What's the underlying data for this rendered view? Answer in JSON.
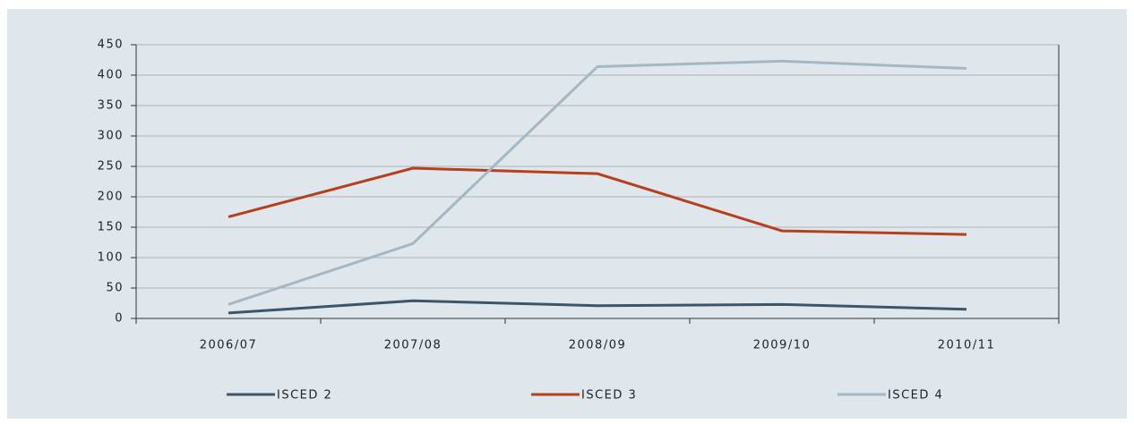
{
  "chart_data": {
    "type": "line",
    "categories": [
      "2006/07",
      "2007/08",
      "2008/09",
      "2009/10",
      "2010/11"
    ],
    "series": [
      {
        "name": "ISCED 2",
        "color": "#3d5566",
        "values": [
          9,
          29,
          21,
          23,
          15
        ]
      },
      {
        "name": "ISCED 3",
        "color": "#b5401b",
        "values": [
          167,
          247,
          238,
          144,
          138
        ]
      },
      {
        "name": "ISCED 4",
        "color": "#a3b8c4",
        "values": [
          23,
          123,
          414,
          423,
          411
        ]
      }
    ],
    "ylim": [
      0,
      450
    ],
    "yticks": [
      0,
      50,
      100,
      150,
      200,
      250,
      300,
      350,
      400,
      450
    ],
    "grid": true,
    "legend": "bottom"
  }
}
